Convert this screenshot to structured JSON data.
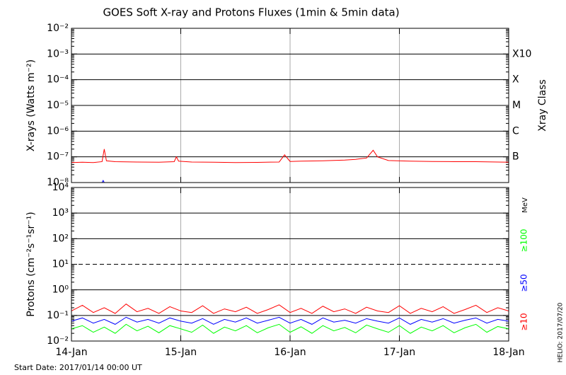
{
  "chart_data": [
    {
      "type": "line",
      "title": "GOES Soft X-ray and Protons Fluxes   (1min & 5min data)",
      "ylabel": "X-rays (Watts m⁻²)",
      "log_scale": true,
      "xlim": [
        0,
        4
      ],
      "xticks": [
        {
          "value": 0,
          "label": "14-Jan"
        },
        {
          "value": 1,
          "label": "15-Jan"
        },
        {
          "value": 2,
          "label": "16-Jan"
        },
        {
          "value": 3,
          "label": "17-Jan"
        },
        {
          "value": 4,
          "label": "18-Jan"
        }
      ],
      "ylim": [
        1e-08,
        0.01
      ],
      "yticks": [
        {
          "value": 1e-08,
          "label": "10⁻⁸"
        },
        {
          "value": 1e-07,
          "label": "10⁻⁷"
        },
        {
          "value": 1e-06,
          "label": "10⁻⁶"
        },
        {
          "value": 1e-05,
          "label": "10⁻⁵"
        },
        {
          "value": 0.0001,
          "label": "10⁻⁴"
        },
        {
          "value": 0.001,
          "label": "10⁻³"
        },
        {
          "value": 0.01,
          "label": "10⁻²"
        }
      ],
      "y2label": "Xray Class",
      "y2lim": [
        1e-08,
        0.01
      ],
      "y2ticks": [
        {
          "value": 0.001,
          "label": "X10"
        },
        {
          "value": 0.0001,
          "label": "X"
        },
        {
          "value": 1e-05,
          "label": "M"
        },
        {
          "value": 1e-06,
          "label": "C"
        },
        {
          "value": 1e-07,
          "label": "B"
        }
      ],
      "grid": true,
      "series": [
        {
          "color": "#ff0000",
          "x": [
            0,
            0.1,
            0.2,
            0.28,
            0.3,
            0.32,
            0.4,
            0.6,
            0.8,
            0.94,
            0.96,
            0.98,
            1.1,
            1.3,
            1.5,
            1.7,
            1.9,
            1.95,
            2.0,
            2.1,
            2.3,
            2.5,
            2.6,
            2.7,
            2.76,
            2.8,
            2.9,
            3.1,
            3.3,
            3.5,
            3.7,
            3.9,
            4.0
          ],
          "values": [
            6e-08,
            6.2e-08,
            6e-08,
            6.5e-08,
            2e-07,
            7e-08,
            6.5e-08,
            6.3e-08,
            6.2e-08,
            6.5e-08,
            1e-07,
            6.8e-08,
            6.3e-08,
            6.2e-08,
            6e-08,
            6.1e-08,
            6.3e-08,
            1.2e-07,
            6.6e-08,
            6.8e-08,
            7e-08,
            7.5e-08,
            8e-08,
            9e-08,
            1.8e-07,
            1e-07,
            7.2e-08,
            6.8e-08,
            6.6e-08,
            6.5e-08,
            6.5e-08,
            6.3e-08,
            6.2e-08
          ]
        },
        {
          "color": "#0000ff",
          "x": [
            0.28,
            0.29,
            0.3
          ],
          "values": [
            1e-08,
            1.2e-08,
            1e-08
          ]
        }
      ]
    },
    {
      "type": "line",
      "ylabel": "Protons (cm⁻²s⁻¹sr⁻¹)",
      "log_scale": true,
      "xlim": [
        0,
        4
      ],
      "xticks": [
        {
          "value": 0,
          "label": "14-Jan"
        },
        {
          "value": 1,
          "label": "15-Jan"
        },
        {
          "value": 2,
          "label": "16-Jan"
        },
        {
          "value": 3,
          "label": "17-Jan"
        },
        {
          "value": 4,
          "label": "18-Jan"
        }
      ],
      "ylim": [
        0.01,
        10000
      ],
      "yticks": [
        {
          "value": 0.01,
          "label": "10⁻²"
        },
        {
          "value": 0.1,
          "label": "10⁻¹"
        },
        {
          "value": 1,
          "label": "10⁰"
        },
        {
          "value": 10,
          "label": "10¹"
        },
        {
          "value": 100,
          "label": "10²"
        },
        {
          "value": 1000,
          "label": "10³"
        },
        {
          "value": 10000,
          "label": "10⁴"
        }
      ],
      "y2label": "MeV",
      "dashed_line": 10,
      "grid": true,
      "x": [
        0,
        0.1,
        0.2,
        0.3,
        0.4,
        0.5,
        0.6,
        0.7,
        0.8,
        0.9,
        1,
        1.1,
        1.2,
        1.3,
        1.4,
        1.5,
        1.6,
        1.7,
        1.8,
        1.9,
        2,
        2.1,
        2.2,
        2.3,
        2.4,
        2.5,
        2.6,
        2.7,
        2.8,
        2.9,
        3,
        3.1,
        3.2,
        3.3,
        3.4,
        3.5,
        3.6,
        3.7,
        3.8,
        3.9,
        4
      ],
      "series": [
        {
          "name": "≥100",
          "color": "#00ff00",
          "values": [
            0.03,
            0.04,
            0.022,
            0.035,
            0.02,
            0.045,
            0.025,
            0.038,
            0.021,
            0.04,
            0.03,
            0.022,
            0.042,
            0.02,
            0.035,
            0.025,
            0.04,
            0.021,
            0.033,
            0.045,
            0.022,
            0.036,
            0.02,
            0.04,
            0.025,
            0.034,
            0.021,
            0.042,
            0.03,
            0.022,
            0.04,
            0.02,
            0.035,
            0.025,
            0.04,
            0.021,
            0.033,
            0.045,
            0.022,
            0.037,
            0.03
          ]
        },
        {
          "name": "≥50",
          "color": "#0000ff",
          "values": [
            0.06,
            0.08,
            0.05,
            0.07,
            0.045,
            0.085,
            0.055,
            0.07,
            0.05,
            0.08,
            0.06,
            0.05,
            0.075,
            0.045,
            0.07,
            0.055,
            0.08,
            0.05,
            0.065,
            0.085,
            0.05,
            0.07,
            0.045,
            0.08,
            0.055,
            0.065,
            0.05,
            0.075,
            0.06,
            0.05,
            0.08,
            0.045,
            0.07,
            0.055,
            0.075,
            0.05,
            0.065,
            0.08,
            0.05,
            0.07,
            0.06
          ]
        },
        {
          "name": "≥10",
          "color": "#ff0000",
          "values": [
            0.15,
            0.25,
            0.13,
            0.2,
            0.12,
            0.28,
            0.14,
            0.19,
            0.12,
            0.22,
            0.15,
            0.13,
            0.24,
            0.12,
            0.18,
            0.14,
            0.21,
            0.12,
            0.17,
            0.26,
            0.13,
            0.19,
            0.12,
            0.23,
            0.14,
            0.18,
            0.12,
            0.21,
            0.15,
            0.13,
            0.24,
            0.12,
            0.19,
            0.14,
            0.22,
            0.12,
            0.17,
            0.25,
            0.13,
            0.2,
            0.15
          ]
        }
      ]
    }
  ],
  "footer": {
    "start_date": "Start Date: 2017/01/14 00:00 UT",
    "stamp": "HELIO: 2017/07/20"
  }
}
